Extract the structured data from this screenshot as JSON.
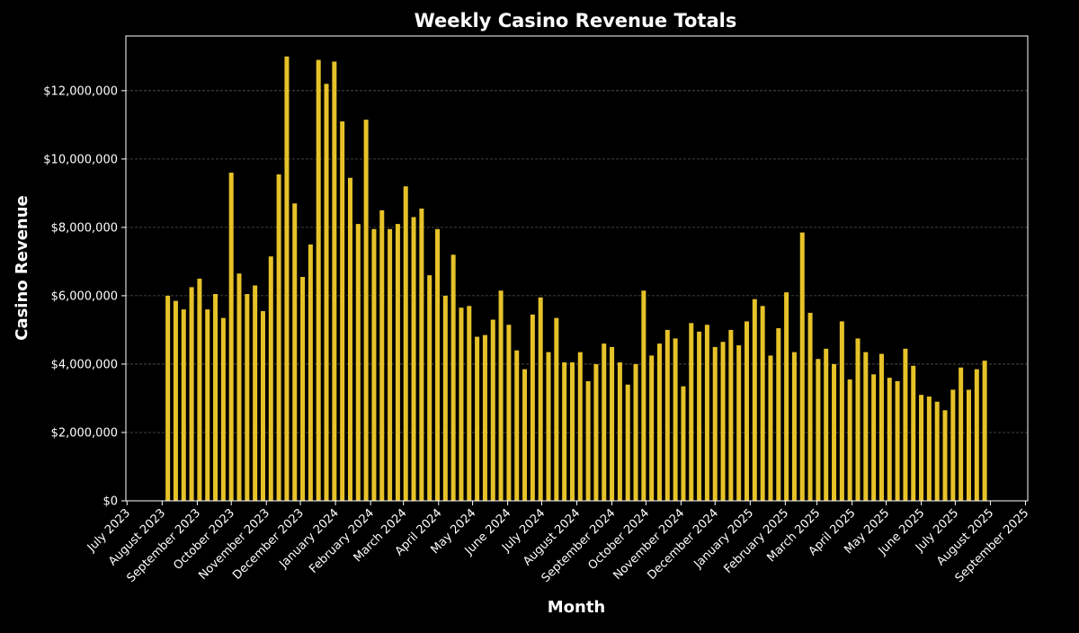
{
  "chart_data": {
    "type": "bar",
    "title": "Weekly Casino Revenue Totals",
    "x_label": "Month",
    "y_label": "Casino Revenue",
    "x": [
      "2023-08-06",
      "2023-08-13",
      "2023-08-20",
      "2023-08-27",
      "2023-09-03",
      "2023-09-10",
      "2023-09-17",
      "2023-09-24",
      "2023-10-01",
      "2023-10-08",
      "2023-10-15",
      "2023-10-22",
      "2023-10-29",
      "2023-11-05",
      "2023-11-12",
      "2023-11-19",
      "2023-11-26",
      "2023-12-03",
      "2023-12-10",
      "2023-12-17",
      "2023-12-24",
      "2023-12-31",
      "2024-01-07",
      "2024-01-14",
      "2024-01-21",
      "2024-01-28",
      "2024-02-04",
      "2024-02-11",
      "2024-02-18",
      "2024-02-25",
      "2024-03-03",
      "2024-03-10",
      "2024-03-17",
      "2024-03-24",
      "2024-03-31",
      "2024-04-07",
      "2024-04-14",
      "2024-04-21",
      "2024-04-28",
      "2024-05-05",
      "2024-05-12",
      "2024-05-19",
      "2024-05-26",
      "2024-06-02",
      "2024-06-09",
      "2024-06-16",
      "2024-06-23",
      "2024-06-30",
      "2024-07-07",
      "2024-07-14",
      "2024-07-21",
      "2024-07-28",
      "2024-08-04",
      "2024-08-11",
      "2024-08-18",
      "2024-08-25",
      "2024-09-01",
      "2024-09-08",
      "2024-09-15",
      "2024-09-22",
      "2024-09-29",
      "2024-10-06",
      "2024-10-13",
      "2024-10-20",
      "2024-10-27",
      "2024-11-03",
      "2024-11-10",
      "2024-11-17",
      "2024-11-24",
      "2024-12-01",
      "2024-12-08",
      "2024-12-15",
      "2024-12-22",
      "2024-12-29",
      "2025-01-05",
      "2025-01-12",
      "2025-01-19",
      "2025-01-26",
      "2025-02-02",
      "2025-02-09",
      "2025-02-16",
      "2025-02-23",
      "2025-03-02",
      "2025-03-09",
      "2025-03-16",
      "2025-03-23",
      "2025-03-30",
      "2025-04-06",
      "2025-04-13",
      "2025-04-20",
      "2025-04-27",
      "2025-05-04",
      "2025-05-11",
      "2025-05-18",
      "2025-05-25",
      "2025-06-01",
      "2025-06-08",
      "2025-06-15",
      "2025-06-22",
      "2025-06-29",
      "2025-07-06",
      "2025-07-13",
      "2025-07-20",
      "2025-07-27"
    ],
    "values": [
      6000000,
      5850000,
      5600000,
      6250000,
      6500000,
      5600000,
      6050000,
      5350000,
      9600000,
      6650000,
      6050000,
      6300000,
      5550000,
      7150000,
      9550000,
      13000000,
      8700000,
      6550000,
      7500000,
      12900000,
      12200000,
      12850000,
      11100000,
      9450000,
      8100000,
      11150000,
      7950000,
      8500000,
      7950000,
      8100000,
      9200000,
      8300000,
      8550000,
      6600000,
      7950000,
      6000000,
      7200000,
      5650000,
      5700000,
      4800000,
      4850000,
      5300000,
      6150000,
      5150000,
      4400000,
      3850000,
      5450000,
      5950000,
      4350000,
      5350000,
      4050000,
      4050000,
      4350000,
      3500000,
      4000000,
      4600000,
      4500000,
      4050000,
      3400000,
      4000000,
      6150000,
      4250000,
      4600000,
      5000000,
      4750000,
      3350000,
      5200000,
      4950000,
      5150000,
      4500000,
      4650000,
      5000000,
      4550000,
      5250000,
      5900000,
      5700000,
      4250000,
      5050000,
      6100000,
      4350000,
      7850000,
      5500000,
      4150000,
      4450000,
      4000000,
      5250000,
      3550000,
      4750000,
      4350000,
      3700000,
      4300000,
      3600000,
      3500000,
      4450000,
      3950000,
      3100000,
      3050000,
      2900000,
      2650000,
      3250000,
      3900000,
      3250000,
      3850000,
      4100000
    ],
    "color": "#e6c229",
    "xlim": [
      "2023-06-30",
      "2025-09-03"
    ],
    "xticks": [
      {
        "value": "2023-07-01",
        "label": "July 2023"
      },
      {
        "value": "2023-08-01",
        "label": "August 2023"
      },
      {
        "value": "2023-09-01",
        "label": "September 2023"
      },
      {
        "value": "2023-10-01",
        "label": "October 2023"
      },
      {
        "value": "2023-11-01",
        "label": "November 2023"
      },
      {
        "value": "2023-12-01",
        "label": "December 2023"
      },
      {
        "value": "2024-01-01",
        "label": "January 2024"
      },
      {
        "value": "2024-02-01",
        "label": "February 2024"
      },
      {
        "value": "2024-03-01",
        "label": "March 2024"
      },
      {
        "value": "2024-04-01",
        "label": "April 2024"
      },
      {
        "value": "2024-05-01",
        "label": "May 2024"
      },
      {
        "value": "2024-06-01",
        "label": "June 2024"
      },
      {
        "value": "2024-07-01",
        "label": "July 2024"
      },
      {
        "value": "2024-08-01",
        "label": "August 2024"
      },
      {
        "value": "2024-09-01",
        "label": "September 2024"
      },
      {
        "value": "2024-10-01",
        "label": "October 2024"
      },
      {
        "value": "2024-11-01",
        "label": "November 2024"
      },
      {
        "value": "2024-12-01",
        "label": "December 2024"
      },
      {
        "value": "2025-01-01",
        "label": "January 2025"
      },
      {
        "value": "2025-02-01",
        "label": "February 2025"
      },
      {
        "value": "2025-03-01",
        "label": "March 2025"
      },
      {
        "value": "2025-04-01",
        "label": "April 2025"
      },
      {
        "value": "2025-05-01",
        "label": "May 2025"
      },
      {
        "value": "2025-06-01",
        "label": "June 2025"
      },
      {
        "value": "2025-07-01",
        "label": "July 2025"
      },
      {
        "value": "2025-08-01",
        "label": "August 2025"
      },
      {
        "value": "2025-09-01",
        "label": "September 2025"
      }
    ],
    "ylim": [
      0,
      13600000
    ],
    "yticks": [
      {
        "value": 0,
        "label": "$0"
      },
      {
        "value": 2000000,
        "label": "$2,000,000"
      },
      {
        "value": 4000000,
        "label": "$4,000,000"
      },
      {
        "value": 6000000,
        "label": "$6,000,000"
      },
      {
        "value": 8000000,
        "label": "$8,000,000"
      },
      {
        "value": 10000000,
        "label": "$10,000,000"
      },
      {
        "value": 12000000,
        "label": "$12,000,000"
      }
    ],
    "grid": true
  }
}
